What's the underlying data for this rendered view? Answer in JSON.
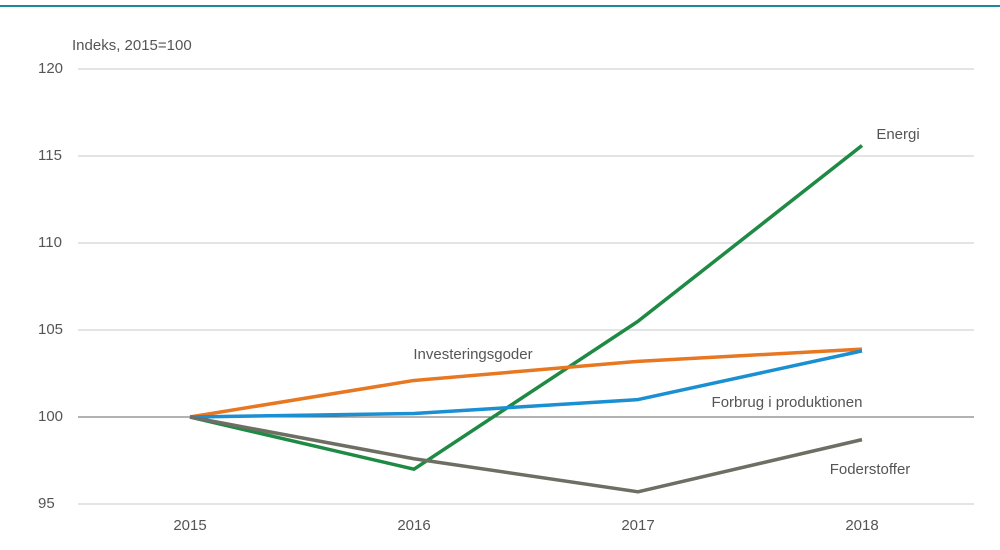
{
  "chart_data": {
    "type": "line",
    "y_axis_label": "Indeks, 2015=100",
    "categories": [
      "2015",
      "2016",
      "2017",
      "2018"
    ],
    "series": [
      {
        "name": "Energi",
        "color": "#1e8a44",
        "values": [
          100,
          97.0,
          105.5,
          115.6
        ]
      },
      {
        "name": "Investeringsgoder",
        "color": "#e87722",
        "values": [
          100,
          102.1,
          103.2,
          103.9
        ]
      },
      {
        "name": "Forbrug i produktionen",
        "color": "#1a8fd1",
        "values": [
          100,
          100.2,
          101.0,
          103.8
        ]
      },
      {
        "name": "Foderstoffer",
        "color": "#6e6e64",
        "values": [
          100,
          97.6,
          95.7,
          98.7
        ]
      }
    ],
    "ylim": [
      95,
      120
    ],
    "yticks": [
      95,
      100,
      105,
      110,
      115,
      120
    ],
    "grid": true
  }
}
